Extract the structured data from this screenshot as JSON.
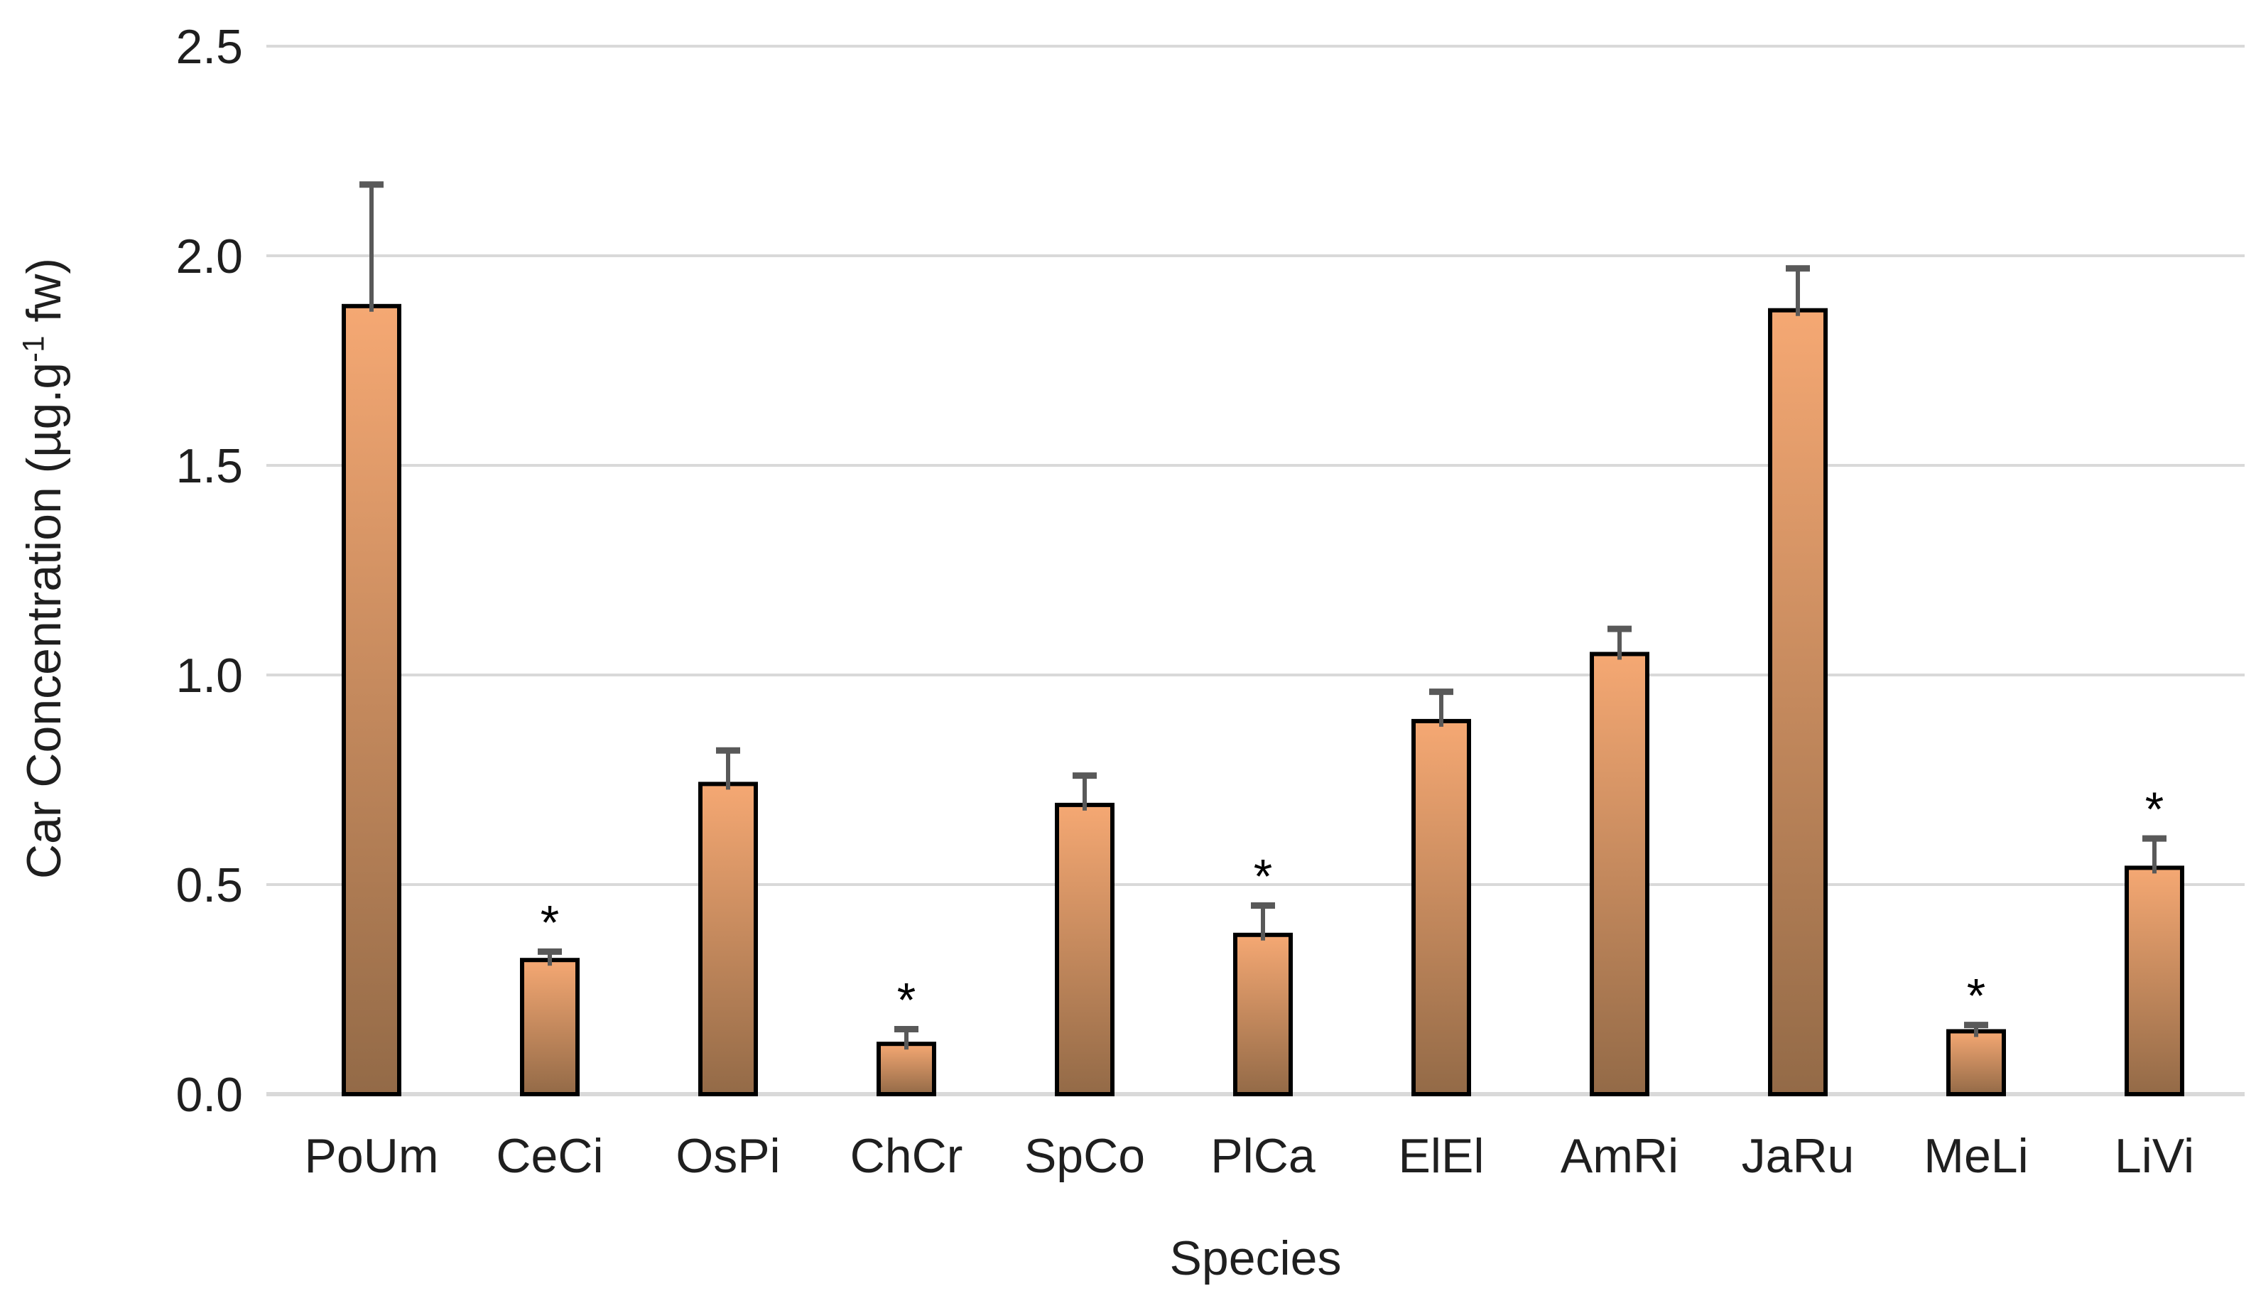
{
  "chart_data": {
    "type": "bar",
    "title": "",
    "xlabel": "Species",
    "ylabel_full": "Car Concentration (µg.g-1 fw)",
    "ylabel_prefix": "Car Concentration (µg.g",
    "ylabel_superscript": "-1",
    "ylabel_suffix": " fw)",
    "categories": [
      "PoUm",
      "CeCi",
      "OsPi",
      "ChCr",
      "SpCo",
      "PlCa",
      "ElEl",
      "AmRi",
      "JaRu",
      "MeLi",
      "LiVi"
    ],
    "values": [
      1.88,
      0.32,
      0.74,
      0.12,
      0.69,
      0.38,
      0.89,
      1.05,
      1.87,
      0.15,
      0.54
    ],
    "upper_errors": [
      0.29,
      0.02,
      0.08,
      0.035,
      0.07,
      0.07,
      0.07,
      0.06,
      0.1,
      0.015,
      0.07
    ],
    "significant": [
      false,
      true,
      false,
      true,
      false,
      true,
      false,
      false,
      false,
      true,
      true
    ],
    "significance_marker": "*",
    "ylim": [
      0,
      2.5
    ],
    "ytick_labels": [
      "0.0",
      "0.5",
      "1.0",
      "1.5",
      "2.0",
      "2.5"
    ],
    "ytick_values": [
      0,
      0.5,
      1.0,
      1.5,
      2.0,
      2.5
    ],
    "grid": true,
    "legend": false,
    "colors": {
      "bar_top": "#F5A873",
      "bar_bottom": "#936A47",
      "bar_border": "#000000",
      "error_bar": "#595959",
      "gridline": "#D9D9D9",
      "text": "#1F1F1F",
      "background": "#FFFFFF"
    }
  }
}
